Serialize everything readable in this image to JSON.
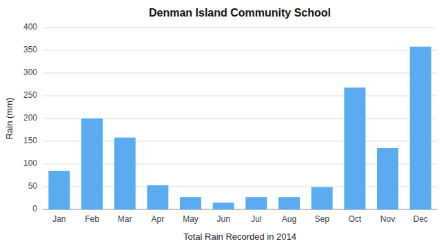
{
  "chart_data": {
    "type": "bar",
    "title": "Denman Island Community School",
    "xlabel": "Total Rain Recorded in 2014",
    "ylabel": "Rain (mm)",
    "categories": [
      "Jan",
      "Feb",
      "Mar",
      "Apr",
      "May",
      "Jun",
      "Jul",
      "Aug",
      "Sep",
      "Oct",
      "Nov",
      "Dec"
    ],
    "values": [
      85,
      200,
      158,
      53,
      27,
      15,
      27,
      27,
      49,
      268,
      135,
      358
    ],
    "color": "#5aabf0",
    "ylim": [
      0,
      400
    ],
    "yticks": [
      0,
      50,
      100,
      150,
      200,
      250,
      300,
      350,
      400
    ],
    "grid": true
  }
}
